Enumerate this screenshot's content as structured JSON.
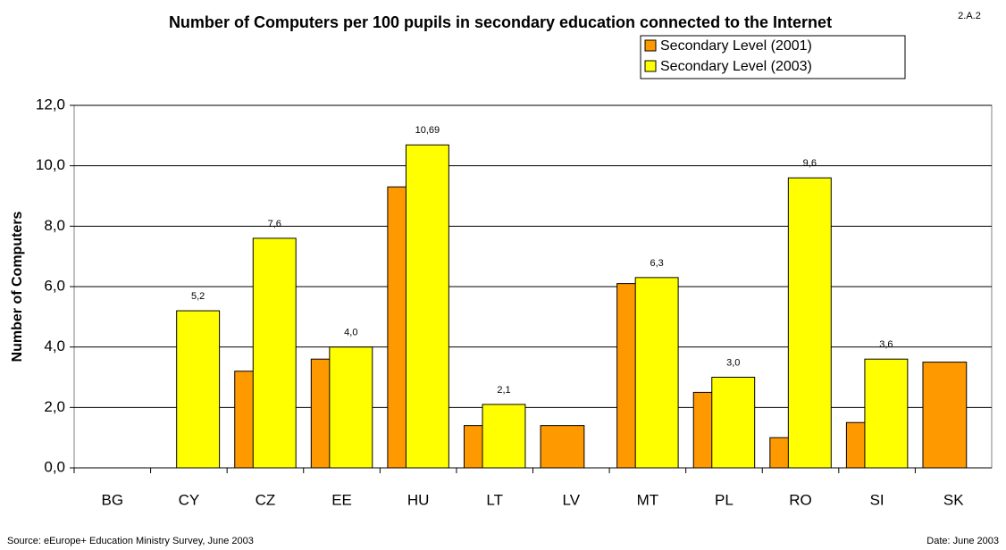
{
  "chart_data": {
    "type": "bar",
    "title": "Number of Computers per 100 pupils in secondary education connected to the Internet",
    "code": "2.A.2",
    "y_label": "Number of Computers",
    "source": "Source: eEurope+ Education Ministry Survey, June 2003",
    "date": "Date: June 2003",
    "categories": [
      "BG",
      "CY",
      "CZ",
      "EE",
      "HU",
      "LT",
      "LV",
      "MT",
      "PL",
      "RO",
      "SI",
      "SK"
    ],
    "series": [
      {
        "name": "Secondary Level (2001)",
        "color": "#ff9900",
        "values": [
          null,
          null,
          3.2,
          3.6,
          9.3,
          1.4,
          1.4,
          6.1,
          2.5,
          1.0,
          1.5,
          3.5
        ]
      },
      {
        "name": "Secondary Level (2003)",
        "color": "#ffff00",
        "values": [
          null,
          5.2,
          7.6,
          4.0,
          10.69,
          2.1,
          null,
          6.3,
          3.0,
          9.6,
          3.6,
          null
        ],
        "value_labels": [
          null,
          "5,2",
          "7,6",
          "4,0",
          "10,69",
          "2,1",
          null,
          "6,3",
          "3,0",
          "9,6",
          "3,6",
          null
        ]
      }
    ],
    "ylim": [
      0,
      12
    ],
    "yticks": [
      {
        "value": 0,
        "label": "0,0"
      },
      {
        "value": 2,
        "label": "2,0"
      },
      {
        "value": 4,
        "label": "4,0"
      },
      {
        "value": 6,
        "label": "6,0"
      },
      {
        "value": 8,
        "label": "8,0"
      },
      {
        "value": 10,
        "label": "10,0"
      },
      {
        "value": 12,
        "label": "12,0"
      }
    ],
    "grid": true
  }
}
